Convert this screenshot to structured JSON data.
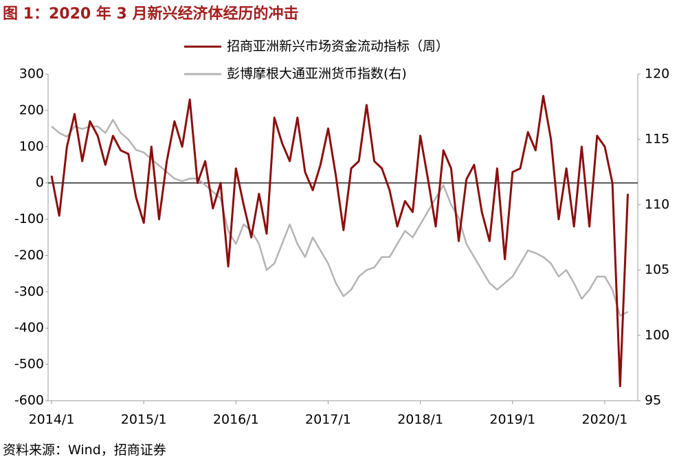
{
  "chart_data": {
    "type": "line",
    "title": "图 1：2020 年 3 月新兴经济体经历的冲击",
    "source": "资料来源：Wind，招商证券",
    "categories": [
      "2014/1",
      null,
      null,
      null,
      null,
      null,
      null,
      null,
      null,
      null,
      null,
      null,
      "2015/1",
      null,
      null,
      null,
      null,
      null,
      null,
      null,
      null,
      null,
      null,
      null,
      "2016/1",
      null,
      null,
      null,
      null,
      null,
      null,
      null,
      null,
      null,
      null,
      null,
      "2017/1",
      null,
      null,
      null,
      null,
      null,
      null,
      null,
      null,
      null,
      null,
      null,
      "2018/1",
      null,
      null,
      null,
      null,
      null,
      null,
      null,
      null,
      null,
      null,
      null,
      "2019/1",
      null,
      null,
      null,
      null,
      null,
      null,
      null,
      null,
      null,
      null,
      null,
      "2020/1",
      null,
      null,
      null
    ],
    "series": [
      {
        "name": "招商亚洲新兴市场资金流动指标（周）",
        "color": "#8b0e0e",
        "axis": "y",
        "values": [
          20,
          -90,
          100,
          190,
          60,
          170,
          130,
          50,
          130,
          90,
          80,
          -40,
          -110,
          100,
          -100,
          60,
          170,
          100,
          230,
          0,
          60,
          -70,
          0,
          -230,
          40,
          -60,
          -150,
          -30,
          -140,
          180,
          110,
          60,
          180,
          30,
          -20,
          50,
          150,
          20,
          -130,
          40,
          60,
          215,
          60,
          40,
          -20,
          -120,
          -50,
          -80,
          130,
          10,
          -120,
          90,
          40,
          -160,
          10,
          50,
          -80,
          -160,
          40,
          -210,
          30,
          40,
          140,
          90,
          240,
          120,
          -100,
          40,
          -120,
          100,
          -120,
          130,
          100,
          0,
          -560,
          -30
        ]
      },
      {
        "name": "彭博摩根大通亚洲货币指数(右)",
        "color": "#b4b4b4",
        "axis": "y2",
        "values": [
          116,
          115.5,
          115.2,
          116,
          115.8,
          116,
          116,
          115.5,
          116.5,
          115.5,
          115,
          114.2,
          114,
          113.5,
          113,
          112.5,
          112,
          111.8,
          112,
          112,
          111.5,
          111,
          110.5,
          108,
          107,
          108.5,
          108,
          107,
          105,
          105.5,
          107,
          108.5,
          107,
          106,
          107.5,
          106.5,
          105.5,
          104,
          103,
          103.5,
          104.5,
          105,
          105.2,
          106,
          106,
          107,
          108,
          107.5,
          108.5,
          109.5,
          110.5,
          111.5,
          110,
          109,
          107,
          106,
          105,
          104,
          103.5,
          104,
          104.5,
          105.5,
          106.5,
          106.3,
          106,
          105.5,
          104.5,
          105,
          104,
          102.8,
          103.5,
          104.5,
          104.5,
          103.5,
          101.5,
          101.8
        ]
      }
    ],
    "ylim": [
      -600,
      300
    ],
    "yticks": [
      300,
      200,
      100,
      0,
      -100,
      -200,
      -300,
      -400,
      -500,
      -600
    ],
    "y2lim": [
      95,
      120
    ],
    "y2ticks": [
      120,
      115,
      110,
      105,
      100,
      95
    ],
    "legend": "top"
  }
}
